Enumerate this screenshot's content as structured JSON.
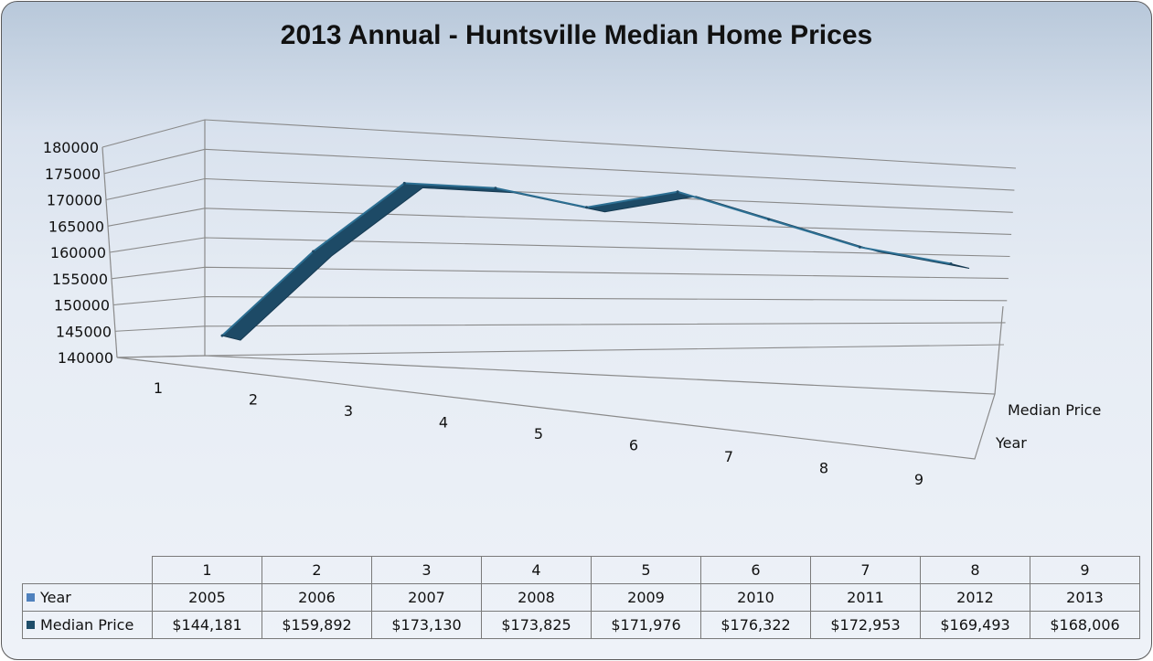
{
  "chart_data": {
    "type": "line",
    "title": "2013 Annual - Huntsville Median Home Prices",
    "categories": [
      "1",
      "2",
      "3",
      "4",
      "5",
      "6",
      "7",
      "8",
      "9"
    ],
    "y_ticks": [
      "180000",
      "175000",
      "170000",
      "165000",
      "160000",
      "155000",
      "150000",
      "145000",
      "140000"
    ],
    "ylim": [
      140000,
      180000
    ],
    "depth_labels": [
      "Median Price",
      "Year"
    ],
    "series": [
      {
        "name": "Year",
        "color": "#4f81bd",
        "values": [
          2005,
          2006,
          2007,
          2008,
          2009,
          2010,
          2011,
          2012,
          2013
        ],
        "display": [
          "2005",
          "2006",
          "2007",
          "2008",
          "2009",
          "2010",
          "2011",
          "2012",
          "2013"
        ]
      },
      {
        "name": "Median Price",
        "color": "#1f4e6a",
        "values": [
          144181,
          159892,
          173130,
          173825,
          171976,
          176322,
          172953,
          169493,
          168006
        ],
        "display": [
          "$144,181",
          "$159,892",
          "$173,130",
          "$173,825",
          "$171,976",
          "$176,322",
          "$172,953",
          "$169,493",
          "$168,006"
        ]
      }
    ],
    "grid": true,
    "three_d": true
  }
}
